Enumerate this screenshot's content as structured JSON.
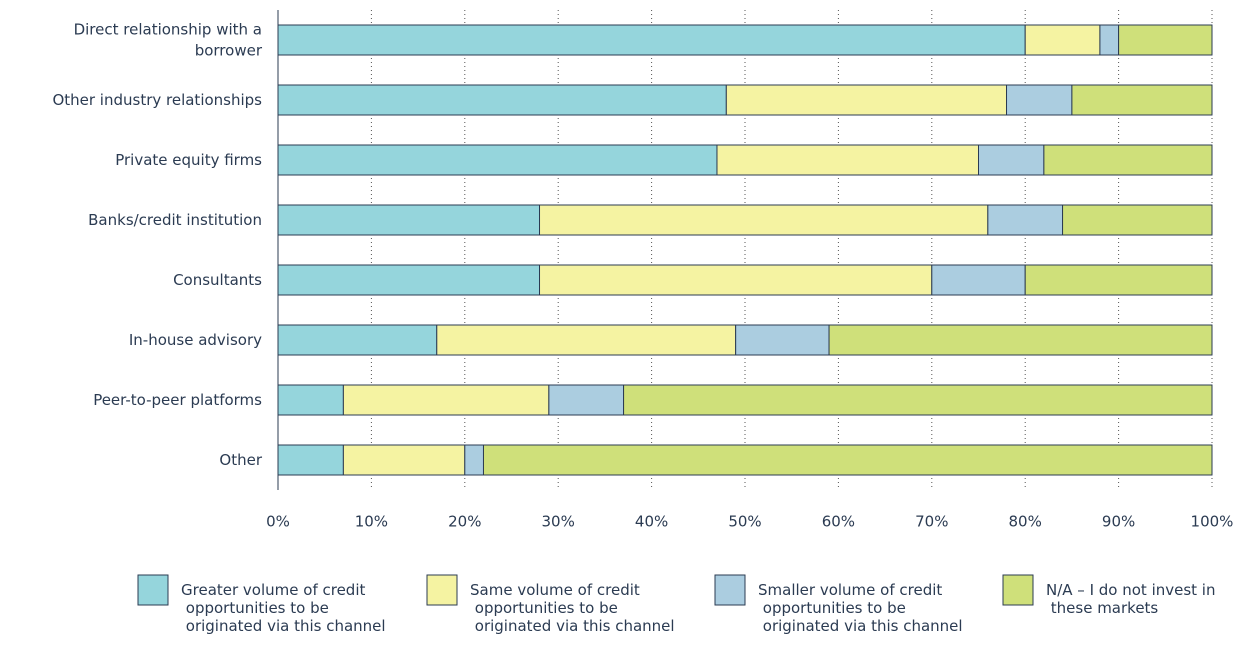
{
  "chart_data": {
    "type": "stacked-bar-horizontal",
    "categories": [
      "Direct relationship with a borrower",
      "Other industry relationships",
      "Private equity firms",
      "Banks/credit institution",
      "Consultants",
      "In-house advisory",
      "Peer-to-peer platforms",
      "Other"
    ],
    "series": [
      {
        "name": "Greater volume of credit opportunities to be originated via this channel",
        "color": "#95d5dc",
        "values": [
          80,
          48,
          47,
          28,
          28,
          17,
          7,
          7
        ]
      },
      {
        "name": "Same volume of credit opportunities to be originated via this channel",
        "color": "#f5f3a2",
        "values": [
          8,
          30,
          28,
          48,
          42,
          32,
          22,
          13
        ]
      },
      {
        "name": "Smaller volume of credit opportunities to be originated via this channel",
        "color": "#abcde0",
        "values": [
          2,
          7,
          7,
          8,
          10,
          10,
          8,
          2
        ]
      },
      {
        "name": "N/A – I do not invest in these markets",
        "color": "#cfe07a",
        "values": [
          10,
          15,
          18,
          16,
          20,
          41,
          63,
          78
        ]
      }
    ],
    "xlim": [
      0,
      100
    ],
    "xticks": [
      {
        "value": 0,
        "label": "0%"
      },
      {
        "value": 10,
        "label": "10%"
      },
      {
        "value": 20,
        "label": "20%"
      },
      {
        "value": 30,
        "label": "30%"
      },
      {
        "value": 40,
        "label": "40%"
      },
      {
        "value": 50,
        "label": "50%"
      },
      {
        "value": 60,
        "label": "60%"
      },
      {
        "value": 70,
        "label": "70%"
      },
      {
        "value": 80,
        "label": "80%"
      },
      {
        "value": 90,
        "label": "90%"
      },
      {
        "value": 100,
        "label": "100%"
      }
    ],
    "grid": true,
    "legend": "bottom"
  }
}
